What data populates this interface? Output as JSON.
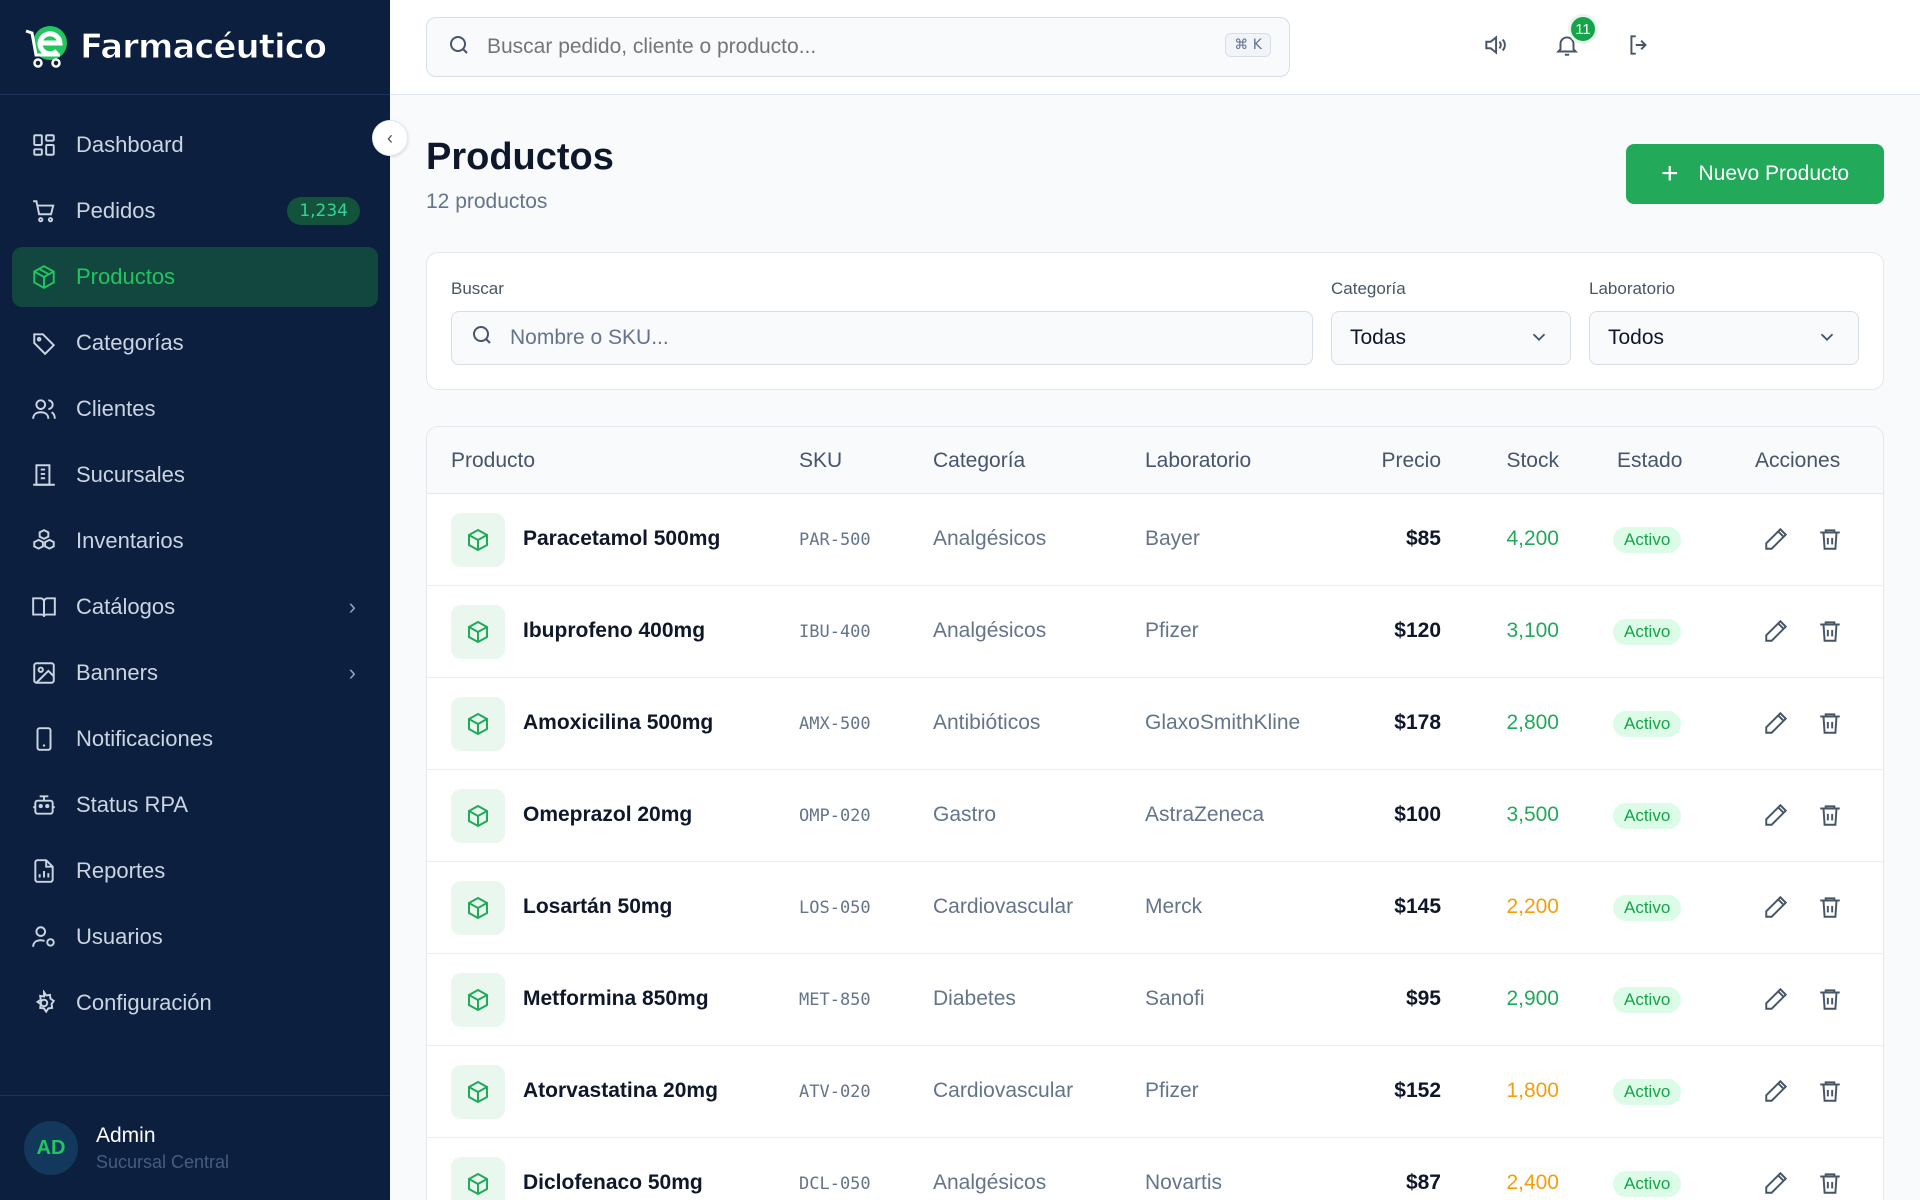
{
  "app": {
    "logo_text": "Farmacéutico"
  },
  "topbar": {
    "search_placeholder": "Buscar pedido, cliente o producto...",
    "shortcut": "⌘ K",
    "notifications_count": "11"
  },
  "sidebar": {
    "items": [
      {
        "label": "Dashboard",
        "icon": "dashboard-icon"
      },
      {
        "label": "Pedidos",
        "icon": "cart-icon",
        "badge": "1,234"
      },
      {
        "label": "Productos",
        "icon": "box-icon",
        "active": true
      },
      {
        "label": "Categorías",
        "icon": "tag-icon"
      },
      {
        "label": "Clientes",
        "icon": "users-icon"
      },
      {
        "label": "Sucursales",
        "icon": "building-icon"
      },
      {
        "label": "Inventarios",
        "icon": "boxes-icon"
      },
      {
        "label": "Catálogos",
        "icon": "book-icon",
        "has_submenu": true
      },
      {
        "label": "Banners",
        "icon": "image-icon",
        "has_submenu": true
      },
      {
        "label": "Notificaciones",
        "icon": "phone-icon"
      },
      {
        "label": "Status RPA",
        "icon": "bot-icon"
      },
      {
        "label": "Reportes",
        "icon": "report-icon"
      },
      {
        "label": "Usuarios",
        "icon": "user-gear-icon"
      },
      {
        "label": "Configuración",
        "icon": "gear-icon"
      }
    ],
    "user": {
      "initials": "AD",
      "name": "Admin",
      "branch": "Sucursal Central"
    }
  },
  "page": {
    "title": "Productos",
    "subtitle": "12 productos",
    "new_button": "Nuevo Producto"
  },
  "filters": {
    "search_label": "Buscar",
    "search_placeholder": "Nombre o SKU...",
    "category_label": "Categoría",
    "category_value": "Todas",
    "lab_label": "Laboratorio",
    "lab_value": "Todos"
  },
  "table": {
    "headers": [
      "Producto",
      "SKU",
      "Categoría",
      "Laboratorio",
      "Precio",
      "Stock",
      "Estado",
      "Acciones"
    ],
    "rows": [
      {
        "name": "Paracetamol 500mg",
        "sku": "PAR-500",
        "category": "Analgésicos",
        "lab": "Bayer",
        "price": "$85",
        "stock": "4,200",
        "stock_color": "#22a95a",
        "status": "Activo"
      },
      {
        "name": "Ibuprofeno 400mg",
        "sku": "IBU-400",
        "category": "Analgésicos",
        "lab": "Pfizer",
        "price": "$120",
        "stock": "3,100",
        "stock_color": "#22a95a",
        "status": "Activo"
      },
      {
        "name": "Amoxicilina 500mg",
        "sku": "AMX-500",
        "category": "Antibióticos",
        "lab": "GlaxoSmithKline",
        "price": "$178",
        "stock": "2,800",
        "stock_color": "#22a95a",
        "status": "Activo"
      },
      {
        "name": "Omeprazol 20mg",
        "sku": "OMP-020",
        "category": "Gastro",
        "lab": "AstraZeneca",
        "price": "$100",
        "stock": "3,500",
        "stock_color": "#22a95a",
        "status": "Activo"
      },
      {
        "name": "Losartán 50mg",
        "sku": "LOS-050",
        "category": "Cardiovascular",
        "lab": "Merck",
        "price": "$145",
        "stock": "2,200",
        "stock_color": "#f59e0b",
        "status": "Activo"
      },
      {
        "name": "Metformina 850mg",
        "sku": "MET-850",
        "category": "Diabetes",
        "lab": "Sanofi",
        "price": "$95",
        "stock": "2,900",
        "stock_color": "#22a95a",
        "status": "Activo"
      },
      {
        "name": "Atorvastatina 20mg",
        "sku": "ATV-020",
        "category": "Cardiovascular",
        "lab": "Pfizer",
        "price": "$152",
        "stock": "1,800",
        "stock_color": "#f59e0b",
        "status": "Activo"
      },
      {
        "name": "Diclofenaco 50mg",
        "sku": "DCL-050",
        "category": "Analgésicos",
        "lab": "Novartis",
        "price": "$87",
        "stock": "2,400",
        "stock_color": "#f59e0b",
        "status": "Activo"
      }
    ]
  },
  "colors": {
    "sidebar_bg": "#0c1f3f",
    "accent": "#22a95a",
    "warning": "#f59e0b"
  }
}
